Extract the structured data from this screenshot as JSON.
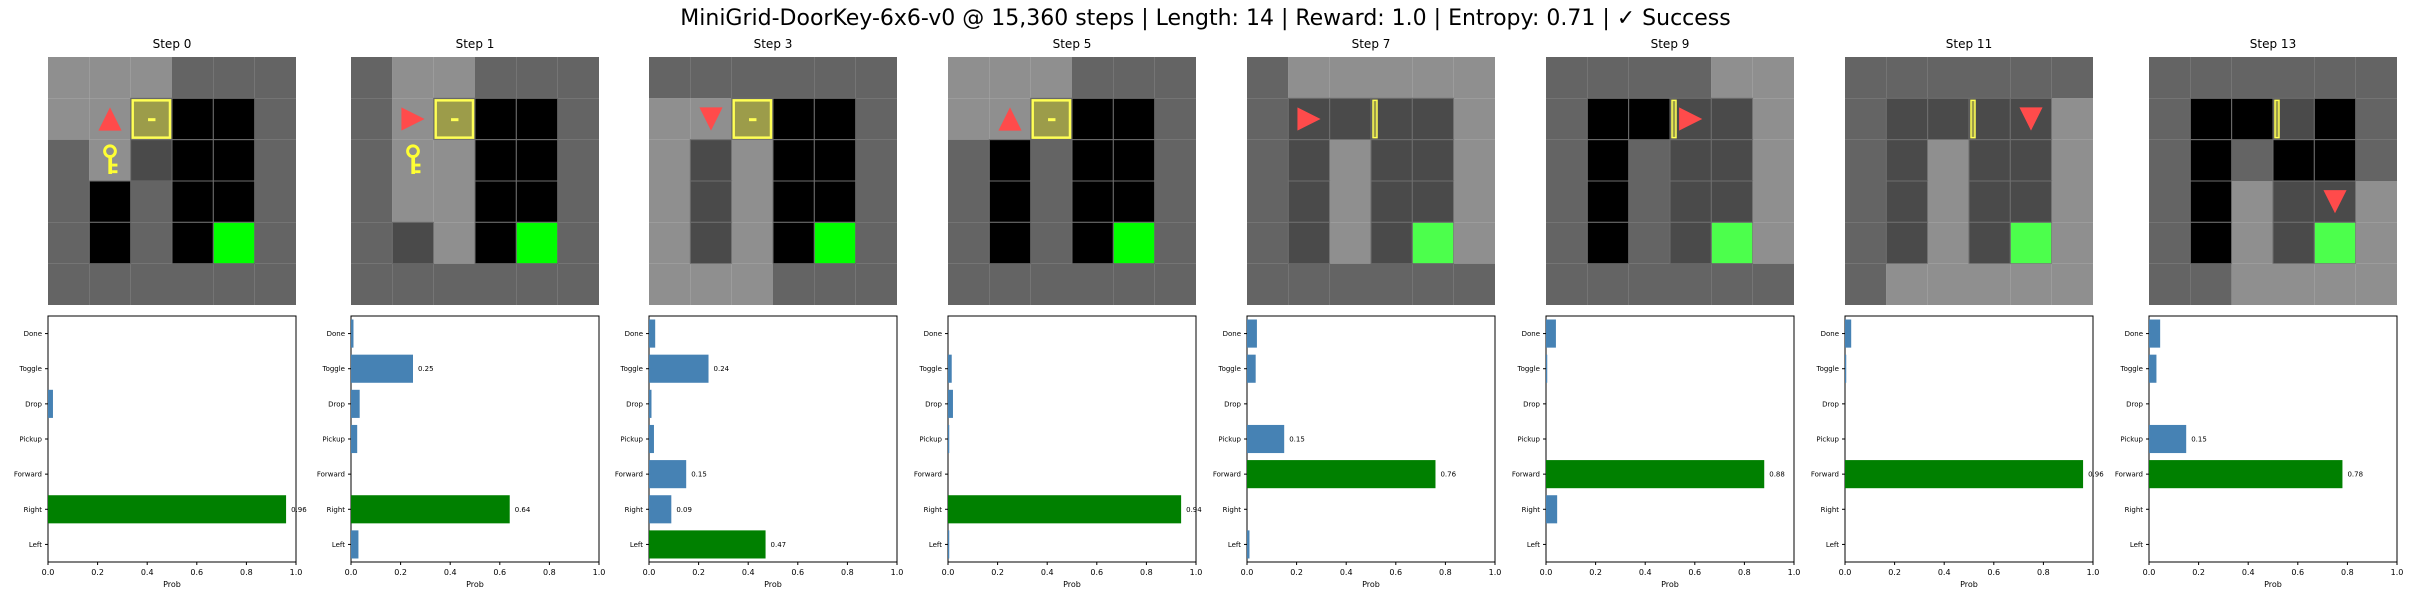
{
  "title": "MiniGrid-DoorKey-6x6-v0 @ 15,360 steps | Length: 14 | Reward: 1.0 | Entropy: 0.71 | ✓ Success",
  "colors": {
    "wall": "#646464",
    "visible": "#8f8f8f",
    "dark": "#000000",
    "floor": "#4a4a4a",
    "grid_line": "#6e6e6e",
    "door": "#9c9c4a",
    "door_outline": "#ffff55",
    "key": "#ffff33",
    "agent": "#ff4b4b",
    "goal": "#00ff00",
    "goal_dim": "#4cff4c",
    "bar_max": "#008000",
    "bar": "#4682b4"
  },
  "chart_data": {
    "type": "bar",
    "orientation": "horizontal",
    "categories": [
      "Left",
      "Right",
      "Forward",
      "Pickup",
      "Drop",
      "Toggle",
      "Done"
    ],
    "xlabel": "Prob",
    "xlim": [
      0,
      1
    ],
    "xticks": [
      "0.0",
      "0.2",
      "0.4",
      "0.6",
      "0.8",
      "1.0"
    ],
    "panels": [
      {
        "title": "Step 0",
        "values": [
          0.0,
          0.96,
          0.0,
          0.0,
          0.02,
          0.0,
          0.0
        ],
        "label": "0.96"
      },
      {
        "title": "Step 1",
        "values": [
          0.03,
          0.64,
          0.0,
          0.025,
          0.035,
          0.25,
          0.01
        ],
        "label": "0.64",
        "label2": "0.25"
      },
      {
        "title": "Step 3",
        "values": [
          0.47,
          0.09,
          0.15,
          0.02,
          0.01,
          0.24,
          0.025
        ],
        "label": "0.47",
        "label2": "0.24",
        "label3": "0.15",
        "label4": "0.09"
      },
      {
        "title": "Step 5",
        "values": [
          0.005,
          0.94,
          0.0,
          0.005,
          0.02,
          0.015,
          0.0
        ],
        "label": "0.94"
      },
      {
        "title": "Step 7",
        "values": [
          0.01,
          0.0,
          0.76,
          0.15,
          0.0,
          0.035,
          0.04
        ],
        "label": "0.76",
        "label2": "0.15"
      },
      {
        "title": "Step 9",
        "values": [
          0.0,
          0.045,
          0.88,
          0.0,
          0.0,
          0.005,
          0.04
        ],
        "label": "0.88"
      },
      {
        "title": "Step 11",
        "values": [
          0.0,
          0.0,
          0.96,
          0.0,
          0.0,
          0.005,
          0.025
        ],
        "label": "0.96"
      },
      {
        "title": "Step 13",
        "values": [
          0.0,
          0.0,
          0.78,
          0.15,
          0.0,
          0.03,
          0.045
        ],
        "label": "0.78",
        "label2": "0.15"
      }
    ]
  },
  "frames": [
    {
      "title": "Step 0",
      "cells": [
        [
          "V",
          "V",
          "V",
          "W",
          "W",
          "W"
        ],
        [
          "V",
          "V",
          "D",
          "K",
          "K",
          "W"
        ],
        [
          "W",
          "V",
          "F",
          "K",
          "K",
          "W"
        ],
        [
          "W",
          "K",
          "W",
          "K",
          "K",
          "W"
        ],
        [
          "W",
          "K",
          "W",
          "K",
          "G",
          "W"
        ],
        [
          "W",
          "W",
          "W",
          "W",
          "W",
          "W"
        ]
      ],
      "door": [
        2,
        1
      ],
      "key": [
        1,
        2
      ],
      "agent": {
        "pos": [
          1,
          1
        ],
        "dir": "up"
      }
    },
    {
      "title": "Step 1",
      "cells": [
        [
          "W",
          "V",
          "V",
          "W",
          "W",
          "W"
        ],
        [
          "W",
          "V",
          "D",
          "K",
          "K",
          "W"
        ],
        [
          "W",
          "V",
          "V",
          "K",
          "K",
          "W"
        ],
        [
          "W",
          "V",
          "V",
          "K",
          "K",
          "W"
        ],
        [
          "W",
          "F",
          "V",
          "K",
          "G",
          "W"
        ],
        [
          "W",
          "W",
          "W",
          "W",
          "W",
          "W"
        ]
      ],
      "door": [
        2,
        1
      ],
      "key": [
        1,
        2
      ],
      "agent": {
        "pos": [
          1,
          1
        ],
        "dir": "right"
      }
    },
    {
      "title": "Step 3",
      "cells": [
        [
          "W",
          "W",
          "W",
          "W",
          "W",
          "W"
        ],
        [
          "V",
          "V",
          "D",
          "K",
          "K",
          "W"
        ],
        [
          "V",
          "F",
          "V",
          "K",
          "K",
          "W"
        ],
        [
          "V",
          "F",
          "V",
          "K",
          "K",
          "W"
        ],
        [
          "V",
          "F",
          "V",
          "K",
          "G",
          "W"
        ],
        [
          "V",
          "V",
          "V",
          "W",
          "W",
          "W"
        ]
      ],
      "door": [
        2,
        1
      ],
      "agent": {
        "pos": [
          1,
          1
        ],
        "dir": "down"
      }
    },
    {
      "title": "Step 5",
      "cells": [
        [
          "V",
          "V",
          "V",
          "W",
          "W",
          "W"
        ],
        [
          "V",
          "V",
          "D",
          "K",
          "K",
          "W"
        ],
        [
          "W",
          "K",
          "W",
          "K",
          "K",
          "W"
        ],
        [
          "W",
          "K",
          "W",
          "K",
          "K",
          "W"
        ],
        [
          "W",
          "K",
          "W",
          "K",
          "G",
          "W"
        ],
        [
          "W",
          "W",
          "W",
          "W",
          "W",
          "W"
        ]
      ],
      "door": [
        2,
        1
      ],
      "agent": {
        "pos": [
          1,
          1
        ],
        "dir": "up"
      }
    },
    {
      "title": "Step 7",
      "cells": [
        [
          "W",
          "V",
          "V",
          "V",
          "V",
          "V"
        ],
        [
          "W",
          "F",
          "F",
          "DO",
          "F",
          "V"
        ],
        [
          "W",
          "F",
          "V",
          "F",
          "F",
          "V"
        ],
        [
          "W",
          "F",
          "V",
          "F",
          "F",
          "V"
        ],
        [
          "W",
          "F",
          "V",
          "F",
          "G2",
          "V"
        ],
        [
          "W",
          "W",
          "W",
          "W",
          "W",
          "W"
        ]
      ],
      "door": [
        3,
        1
      ],
      "agent": {
        "pos": [
          1,
          1
        ],
        "dir": "right"
      }
    },
    {
      "title": "Step 9",
      "cells": [
        [
          "W",
          "W",
          "W",
          "W",
          "V",
          "V"
        ],
        [
          "W",
          "K",
          "K",
          "DO",
          "F",
          "V"
        ],
        [
          "W",
          "K",
          "W",
          "F",
          "F",
          "V"
        ],
        [
          "W",
          "K",
          "W",
          "F",
          "F",
          "V"
        ],
        [
          "W",
          "K",
          "W",
          "F",
          "G2",
          "V"
        ],
        [
          "W",
          "W",
          "W",
          "W",
          "W",
          "W"
        ]
      ],
      "door": [
        3,
        1
      ],
      "agent": {
        "pos": [
          3,
          1
        ],
        "dir": "right"
      }
    },
    {
      "title": "Step 11",
      "cells": [
        [
          "W",
          "W",
          "W",
          "W",
          "W",
          "W"
        ],
        [
          "W",
          "F",
          "F",
          "DO",
          "F",
          "V"
        ],
        [
          "W",
          "F",
          "V",
          "F",
          "F",
          "V"
        ],
        [
          "W",
          "F",
          "V",
          "F",
          "F",
          "V"
        ],
        [
          "W",
          "F",
          "V",
          "F",
          "G2",
          "V"
        ],
        [
          "W",
          "V",
          "V",
          "V",
          "V",
          "V"
        ]
      ],
      "door": [
        3,
        1
      ],
      "agent": {
        "pos": [
          4,
          1
        ],
        "dir": "down"
      }
    },
    {
      "title": "Step 13",
      "cells": [
        [
          "W",
          "W",
          "W",
          "W",
          "W",
          "W"
        ],
        [
          "W",
          "K",
          "K",
          "DO",
          "K",
          "W"
        ],
        [
          "W",
          "K",
          "W",
          "K",
          "K",
          "W"
        ],
        [
          "W",
          "K",
          "V",
          "F",
          "F",
          "V"
        ],
        [
          "W",
          "K",
          "V",
          "F",
          "G2",
          "V"
        ],
        [
          "W",
          "W",
          "V",
          "V",
          "V",
          "V"
        ]
      ],
      "door": [
        3,
        1
      ],
      "agent": {
        "pos": [
          4,
          3
        ],
        "dir": "down"
      }
    }
  ]
}
